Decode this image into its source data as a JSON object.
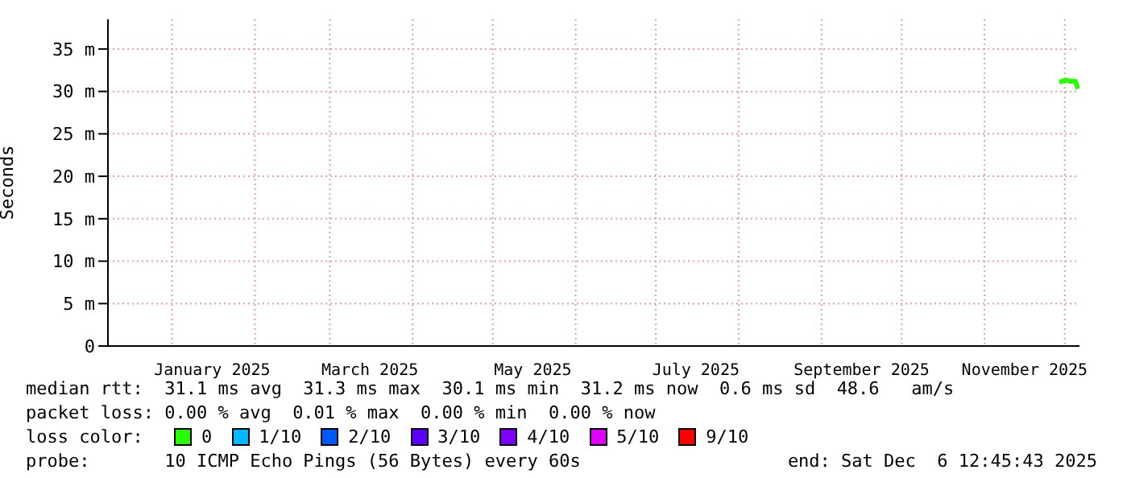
{
  "chart_data": {
    "type": "line",
    "ylabel": "Seconds",
    "legend_title": "loss color:",
    "xlim": [
      "2024-12-08",
      "2025-12-06T12:45"
    ],
    "ylim": [
      0,
      38.5
    ],
    "xticks": [
      {
        "value": "2025-01-01",
        "label": null
      },
      {
        "value": "2025-01-16",
        "label": "January 2025"
      },
      {
        "value": "2025-02-01",
        "label": null
      },
      {
        "value": "2025-03-01",
        "label": null
      },
      {
        "value": "2025-03-16",
        "label": "March 2025"
      },
      {
        "value": "2025-04-01",
        "label": null
      },
      {
        "value": "2025-05-01",
        "label": null
      },
      {
        "value": "2025-05-16",
        "label": "May 2025"
      },
      {
        "value": "2025-06-01",
        "label": null
      },
      {
        "value": "2025-07-01",
        "label": null
      },
      {
        "value": "2025-07-16",
        "label": "July 2025"
      },
      {
        "value": "2025-08-01",
        "label": null
      },
      {
        "value": "2025-09-01",
        "label": null
      },
      {
        "value": "2025-09-16",
        "label": "September 2025"
      },
      {
        "value": "2025-10-01",
        "label": null
      },
      {
        "value": "2025-11-01",
        "label": null
      },
      {
        "value": "2025-11-16",
        "label": "November 2025"
      },
      {
        "value": "2025-12-01",
        "label": null
      }
    ],
    "yticks": [
      0,
      {
        "value": 5,
        "label": "5 m"
      },
      {
        "value": 10,
        "label": "10 m"
      },
      {
        "value": 15,
        "label": "15 m"
      },
      {
        "value": 20,
        "label": "20 m"
      },
      {
        "value": 25,
        "label": "25 m"
      },
      {
        "value": 30,
        "label": "30 m"
      },
      {
        "value": 35,
        "label": "35 m"
      }
    ],
    "grid": true,
    "legend": "bottom",
    "marker": "none",
    "line_style": "solid",
    "x": [
      "2025-11-29",
      "2025-11-30",
      "2025-12-01",
      "2025-12-02",
      "2025-12-03",
      "2025-12-04",
      "2025-12-05",
      "2025-12-06"
    ],
    "series": [
      {
        "name": "0",
        "color": "#26ff00",
        "values": [
          31.1,
          31.2,
          31.3,
          31.3,
          31.2,
          31.2,
          31.2,
          30.3
        ]
      },
      {
        "name": "1/10",
        "color": "#00b8ff",
        "values": [
          null,
          null,
          null,
          null,
          null,
          null,
          null,
          null
        ]
      },
      {
        "name": "2/10",
        "color": "#0059ff",
        "values": [
          null,
          null,
          null,
          null,
          null,
          null,
          null,
          null
        ]
      },
      {
        "name": "3/10",
        "color": "#5e00ff",
        "values": [
          null,
          null,
          null,
          null,
          null,
          null,
          null,
          null
        ]
      },
      {
        "name": "4/10",
        "color": "#7e00ff",
        "values": [
          null,
          null,
          null,
          null,
          null,
          null,
          null,
          null
        ]
      },
      {
        "name": "5/10",
        "color": "#dd00ff",
        "values": [
          null,
          null,
          null,
          null,
          null,
          null,
          null,
          null
        ]
      },
      {
        "name": "9/10",
        "color": "#ff0000",
        "values": [
          null,
          null,
          null,
          null,
          null,
          null,
          null,
          null
        ]
      }
    ],
    "annotations": [
      "median rtt:  31.1 ms avg  31.3 ms max  30.1 ms min  31.2 ms now  0.6 ms sd  48.6   am/s",
      "packet loss: 0.00 % avg  0.01 % max  0.00 % min  0.00 % now",
      "probe:       10 ICMP Echo Pings (56 Bytes) every 60s",
      "end: Sat Dec  6 12:45:43 2025"
    ]
  }
}
